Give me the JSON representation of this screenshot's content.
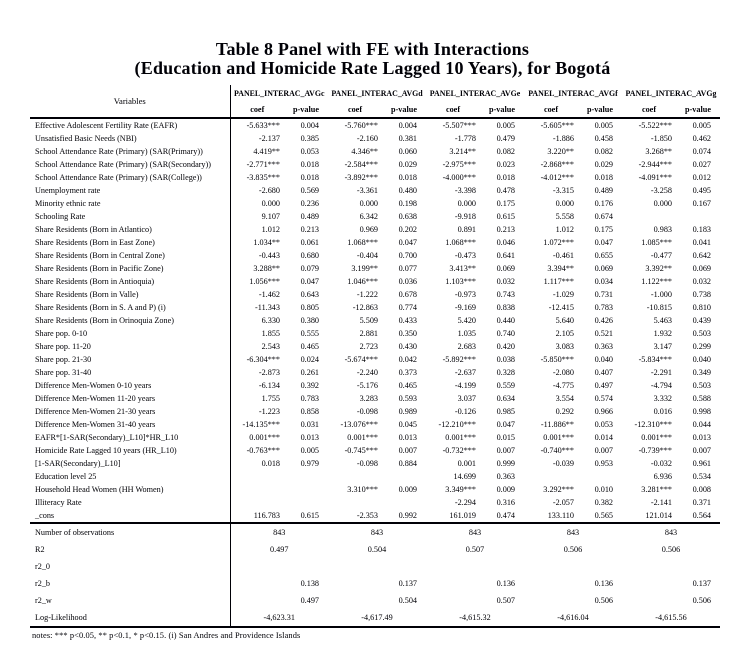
{
  "colors": {
    "text": "#000006",
    "background": "#ffffff"
  },
  "title": {
    "line1": "Table 8 Panel with FE with Interactions",
    "line2": "(Education and Homicide Rate Lagged 10 Years), for Bogotá"
  },
  "table": {
    "variables_header": "Variables",
    "panel_headers": [
      "PANEL_INTERAC_AVGc",
      "PANEL_INTERAC_AVGd",
      "PANEL_INTERAC_AVGe",
      "PANEL_INTERAC_AVGf",
      "PANEL_INTERAC_AVGg"
    ],
    "sub_headers": {
      "coef": "coef",
      "pvalue": "p-value"
    },
    "rows": [
      {
        "label": "Effective Adolescent Fertility Rate (EAFR)",
        "cells": [
          "-5.633***",
          "0.004",
          "-5.760***",
          "0.004",
          "-5.507***",
          "0.005",
          "-5.605***",
          "0.005",
          "-5.522***",
          "0.005"
        ]
      },
      {
        "label": "Unsatisfied Basic Needs (NBI)",
        "cells": [
          "-2.137",
          "0.385",
          "-2.160",
          "0.381",
          "-1.778",
          "0.479",
          "-1.886",
          "0.458",
          "-1.850",
          "0.462"
        ]
      },
      {
        "label": "School Attendance Rate (Primary) (SAR(Primary))",
        "cells": [
          "4.419**",
          "0.053",
          "4.346**",
          "0.060",
          "3.214**",
          "0.082",
          "3.220**",
          "0.082",
          "3.268**",
          "0.074"
        ]
      },
      {
        "label": "School Attendance Rate (Primary) (SAR(Secondary))",
        "cells": [
          "-2.771***",
          "0.018",
          "-2.584***",
          "0.029",
          "-2.975***",
          "0.023",
          "-2.868***",
          "0.029",
          "-2.944***",
          "0.027"
        ]
      },
      {
        "label": "School Attendance Rate (Primary) (SAR(College))",
        "cells": [
          "-3.835***",
          "0.018",
          "-3.892***",
          "0.018",
          "-4.000***",
          "0.018",
          "-4.012***",
          "0.018",
          "-4.091***",
          "0.012"
        ]
      },
      {
        "label": "Unemployment rate",
        "cells": [
          "-2.680",
          "0.569",
          "-3.361",
          "0.480",
          "-3.398",
          "0.478",
          "-3.315",
          "0.489",
          "-3.258",
          "0.495"
        ]
      },
      {
        "label": "Minority ethnic rate",
        "cells": [
          "0.000",
          "0.236",
          "0.000",
          "0.198",
          "0.000",
          "0.175",
          "0.000",
          "0.176",
          "0.000",
          "0.167"
        ]
      },
      {
        "label": "Schooling Rate",
        "cells": [
          "9.107",
          "0.489",
          "6.342",
          "0.638",
          "-9.918",
          "0.615",
          "5.558",
          "0.674",
          "",
          ""
        ]
      },
      {
        "label": "Share Residents (Born in Atlantico)",
        "cells": [
          "1.012",
          "0.213",
          "0.969",
          "0.202",
          "0.891",
          "0.213",
          "1.012",
          "0.175",
          "0.983",
          "0.183"
        ]
      },
      {
        "label": "Share Residents (Born in East Zone)",
        "cells": [
          "1.034**",
          "0.061",
          "1.068***",
          "0.047",
          "1.068***",
          "0.046",
          "1.072***",
          "0.047",
          "1.085***",
          "0.041"
        ]
      },
      {
        "label": "Share Residents (Born in Central Zone)",
        "cells": [
          "-0.443",
          "0.680",
          "-0.404",
          "0.700",
          "-0.473",
          "0.641",
          "-0.461",
          "0.655",
          "-0.477",
          "0.642"
        ]
      },
      {
        "label": "Share Residents (Born in Pacific Zone)",
        "cells": [
          "3.288**",
          "0.079",
          "3.199**",
          "0.077",
          "3.413**",
          "0.069",
          "3.394**",
          "0.069",
          "3.392**",
          "0.069"
        ]
      },
      {
        "label": "Share Residents (Born in Antioquia)",
        "cells": [
          "1.056***",
          "0.047",
          "1.046***",
          "0.036",
          "1.103***",
          "0.032",
          "1.117***",
          "0.034",
          "1.122***",
          "0.032"
        ]
      },
      {
        "label": "Share Residents (Born in Valle)",
        "cells": [
          "-1.462",
          "0.643",
          "-1.222",
          "0.678",
          "-0.973",
          "0.743",
          "-1.029",
          "0.731",
          "-1.000",
          "0.738"
        ]
      },
      {
        "label": "Share Residents (Born in S. A and P) (i)",
        "cells": [
          "-11.343",
          "0.805",
          "-12.863",
          "0.774",
          "-9.169",
          "0.838",
          "-12.415",
          "0.783",
          "-10.815",
          "0.810"
        ]
      },
      {
        "label": "Share Residents (Born in Orinoquia Zone)",
        "cells": [
          "6.330",
          "0.380",
          "5.509",
          "0.433",
          "5.420",
          "0.440",
          "5.640",
          "0.426",
          "5.463",
          "0.439"
        ]
      },
      {
        "label": "Share pop. 0-10",
        "cells": [
          "1.855",
          "0.555",
          "2.881",
          "0.350",
          "1.035",
          "0.740",
          "2.105",
          "0.521",
          "1.932",
          "0.503"
        ]
      },
      {
        "label": "Share pop. 11-20",
        "cells": [
          "2.543",
          "0.465",
          "2.723",
          "0.430",
          "2.683",
          "0.420",
          "3.083",
          "0.363",
          "3.147",
          "0.299"
        ]
      },
      {
        "label": "Share pop. 21-30",
        "cells": [
          "-6.304***",
          "0.024",
          "-5.674***",
          "0.042",
          "-5.892***",
          "0.038",
          "-5.850***",
          "0.040",
          "-5.834***",
          "0.040"
        ]
      },
      {
        "label": "Share pop. 31-40",
        "cells": [
          "-2.873",
          "0.261",
          "-2.240",
          "0.373",
          "-2.637",
          "0.328",
          "-2.080",
          "0.407",
          "-2.291",
          "0.349"
        ]
      },
      {
        "label": "Difference Men-Women 0-10 years",
        "cells": [
          "-6.134",
          "0.392",
          "-5.176",
          "0.465",
          "-4.199",
          "0.559",
          "-4.775",
          "0.497",
          "-4.794",
          "0.503"
        ]
      },
      {
        "label": "Difference Men-Women 11-20 years",
        "cells": [
          "1.755",
          "0.783",
          "3.283",
          "0.593",
          "3.037",
          "0.634",
          "3.554",
          "0.574",
          "3.332",
          "0.588"
        ]
      },
      {
        "label": "Difference Men-Women 21-30 years",
        "cells": [
          "-1.223",
          "0.858",
          "-0.098",
          "0.989",
          "-0.126",
          "0.985",
          "0.292",
          "0.966",
          "0.016",
          "0.998"
        ]
      },
      {
        "label": "Difference Men-Women 31-40 years",
        "cells": [
          "-14.135***",
          "0.031",
          "-13.076***",
          "0.045",
          "-12.210***",
          "0.047",
          "-11.886**",
          "0.053",
          "-12.310***",
          "0.044"
        ]
      },
      {
        "label": "EAFR*[1-SAR(Secondary)_L10]*HR_L10",
        "cells": [
          "0.001***",
          "0.013",
          "0.001***",
          "0.013",
          "0.001***",
          "0.015",
          "0.001***",
          "0.014",
          "0.001***",
          "0.013"
        ]
      },
      {
        "label": "Homicide Rate Lagged 10 years (HR_L10)",
        "cells": [
          "-0.763***",
          "0.005",
          "-0.745***",
          "0.007",
          "-0.732***",
          "0.007",
          "-0.740***",
          "0.007",
          "-0.739***",
          "0.007"
        ]
      },
      {
        "label": "[1-SAR(Secondary)_L10]",
        "cells": [
          "0.018",
          "0.979",
          "-0.098",
          "0.884",
          "0.001",
          "0.999",
          "-0.039",
          "0.953",
          "-0.032",
          "0.961"
        ]
      },
      {
        "label": "Education level 25",
        "cells": [
          "",
          "",
          "",
          "",
          "14.699",
          "0.363",
          "",
          "",
          "6.936",
          "0.534"
        ]
      },
      {
        "label": "Household Head Women (HH Women)",
        "cells": [
          "",
          "",
          "3.310***",
          "0.009",
          "3.349***",
          "0.009",
          "3.292***",
          "0.010",
          "3.281***",
          "0.008"
        ]
      },
      {
        "label": "Illiteracy Rate",
        "cells": [
          "",
          "",
          "",
          "",
          "-2.294",
          "0.316",
          "-2.057",
          "0.382",
          "-2.141",
          "0.371"
        ]
      },
      {
        "label": "_cons",
        "cells": [
          "116.783",
          "0.615",
          "-2.353",
          "0.992",
          "161.019",
          "0.474",
          "133.110",
          "0.565",
          "121.014",
          "0.564"
        ]
      }
    ],
    "stats_rows": [
      {
        "label": "Number of observations",
        "type": "span",
        "values": [
          "843",
          "843",
          "843",
          "843",
          "843"
        ]
      },
      {
        "label": "R2",
        "type": "span",
        "values": [
          "0.497",
          "0.504",
          "0.507",
          "0.506",
          "0.506"
        ]
      },
      {
        "label": "r2_0",
        "type": "pvalue",
        "values": [
          "",
          "",
          "",
          "",
          ""
        ]
      },
      {
        "label": "r2_b",
        "type": "pvalue",
        "values": [
          "0.138",
          "0.137",
          "0.136",
          "0.136",
          "0.137"
        ]
      },
      {
        "label": "r2_w",
        "type": "pvalue",
        "values": [
          "0.497",
          "0.504",
          "0.507",
          "0.506",
          "0.506"
        ]
      },
      {
        "label": "Log-Likelihood",
        "type": "span",
        "values": [
          "-4,623.31",
          "-4,617.49",
          "-4,615.32",
          "-4,616.04",
          "-4,615.56"
        ]
      }
    ],
    "notes": "notes:  *** p<0.05, ** p<0.1, * p<0.15. (i) San Andres and Providence Islands"
  }
}
